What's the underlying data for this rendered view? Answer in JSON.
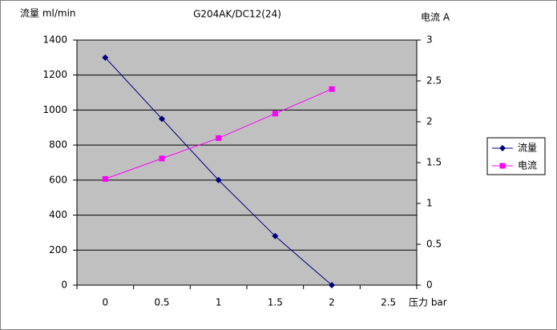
{
  "chart_data": {
    "type": "line",
    "title": "G204AK/DC12(24)",
    "y_label": "流量 ml/min",
    "y2_label": "电流 A",
    "x_label": "压力 bar",
    "categories": [
      "0",
      "0.5",
      "1",
      "1.5",
      "2",
      "2.5"
    ],
    "series": [
      {
        "name": "流量",
        "color": "#000080",
        "marker": "diamond",
        "values": [
          1300,
          950,
          600,
          280,
          0,
          null
        ]
      },
      {
        "name": "电流",
        "color": "#ff00ff",
        "marker": "square",
        "axis": "y2",
        "values": [
          1.3,
          1.55,
          1.8,
          2.1,
          2.4,
          null
        ]
      }
    ],
    "ylim": [
      0,
      1400
    ],
    "yticks": [
      0,
      200,
      400,
      600,
      800,
      1000,
      1200,
      1400
    ],
    "y2lim": [
      0,
      3
    ],
    "y2ticks": [
      0,
      0.5,
      1,
      1.5,
      2,
      2.5,
      3
    ],
    "grid": true,
    "legend": "right"
  }
}
